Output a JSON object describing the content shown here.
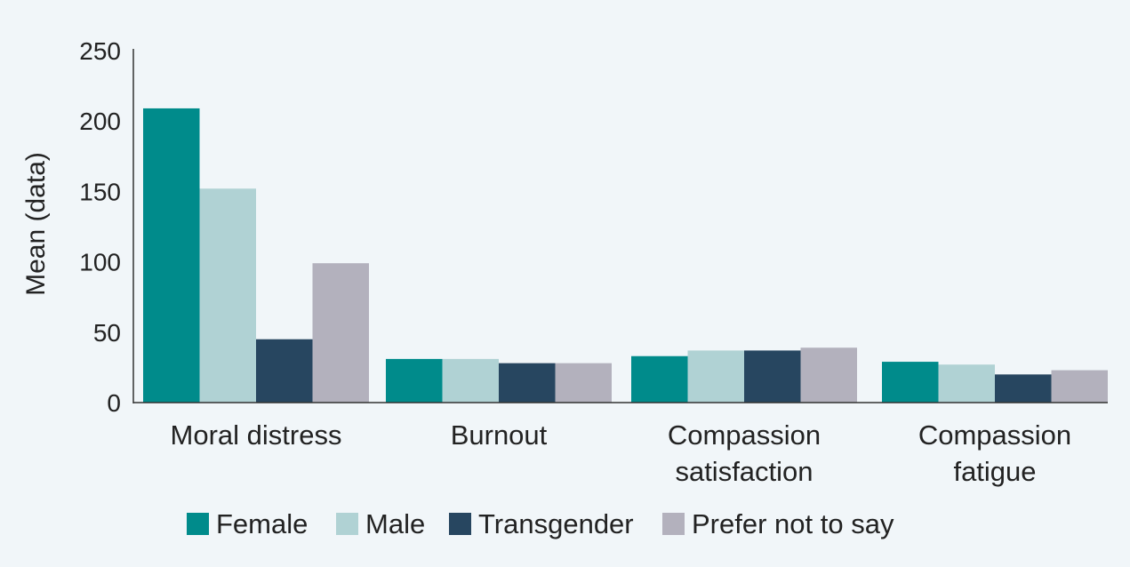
{
  "chart_data": {
    "type": "bar",
    "title": "",
    "xlabel": "",
    "ylabel": "Mean (data)",
    "ylim": [
      0,
      250
    ],
    "yticks": [
      "0",
      "50",
      "100",
      "150",
      "200",
      "250"
    ],
    "grid": false,
    "legend_position": "bottom",
    "categories": [
      [
        "Moral distress"
      ],
      [
        "Burnout"
      ],
      [
        "Compassion",
        "satisfaction"
      ],
      [
        "Compassion",
        "fatigue"
      ]
    ],
    "series": [
      {
        "name": "Female",
        "color": "#008b8b",
        "values": [
          209,
          31,
          33,
          29
        ]
      },
      {
        "name": "Male",
        "color": "#b0d2d4",
        "values": [
          152,
          31,
          37,
          27
        ]
      },
      {
        "name": "Transgender",
        "color": "#274660",
        "values": [
          45,
          28,
          37,
          20
        ]
      },
      {
        "name": "Prefer not to say",
        "color": "#b3b1bd",
        "values": [
          99,
          28,
          39,
          23
        ]
      }
    ]
  }
}
